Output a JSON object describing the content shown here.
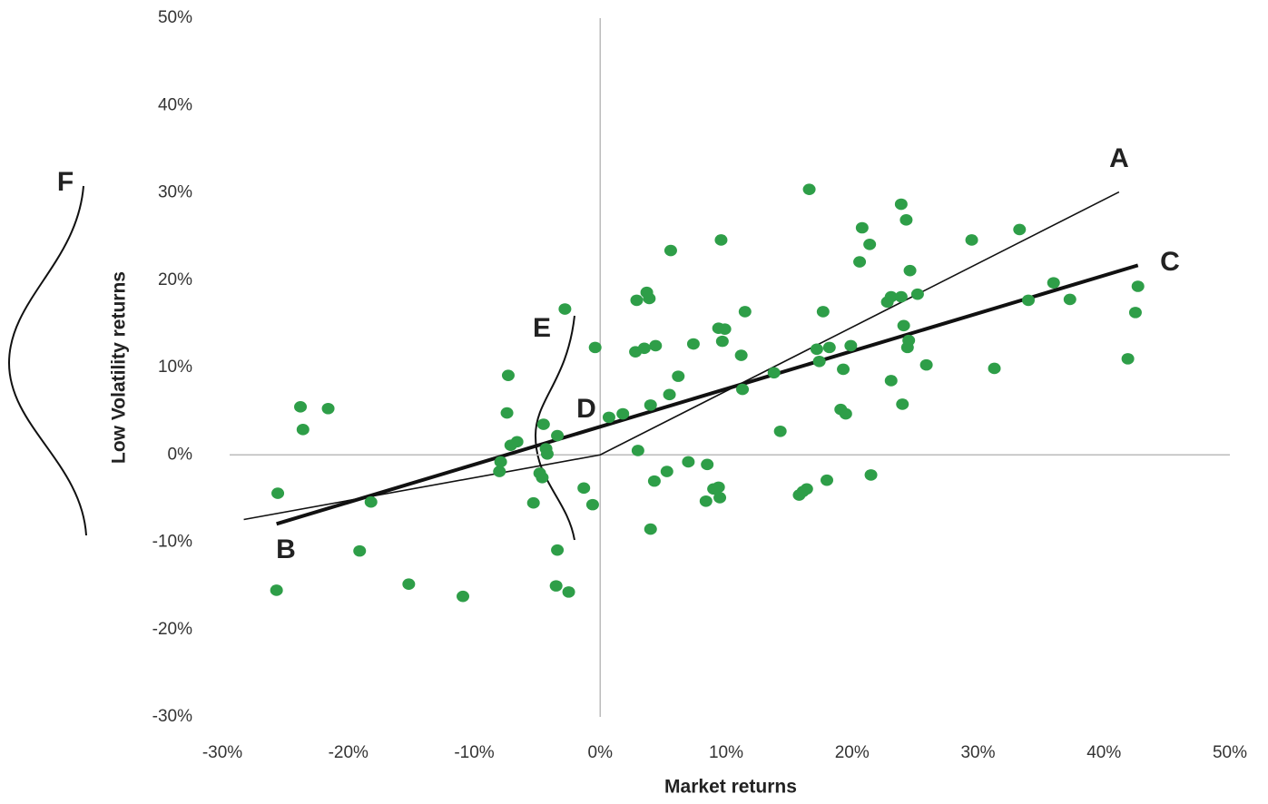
{
  "chart_data": {
    "type": "scatter",
    "x_label": "Market returns",
    "y_label": "Low Volatility returns",
    "xlim": [
      -30,
      50
    ],
    "ylim": [
      -30,
      50
    ],
    "xticks": [
      {
        "value": -30,
        "label": "-30%"
      },
      {
        "value": -20,
        "label": "-20%"
      },
      {
        "value": -10,
        "label": "-10%"
      },
      {
        "value": 0,
        "label": "0%"
      },
      {
        "value": 10,
        "label": "10%"
      },
      {
        "value": 20,
        "label": "20%"
      },
      {
        "value": 30,
        "label": "30%"
      },
      {
        "value": 40,
        "label": "40%"
      },
      {
        "value": 50,
        "label": "50%"
      }
    ],
    "yticks": [
      {
        "value": -30,
        "label": "-30%"
      },
      {
        "value": -20,
        "label": "-20%"
      },
      {
        "value": -10,
        "label": "-10%"
      },
      {
        "value": 0,
        "label": "0%"
      },
      {
        "value": 10,
        "label": "10%"
      },
      {
        "value": 20,
        "label": "20%"
      },
      {
        "value": 30,
        "label": "30%"
      },
      {
        "value": 40,
        "label": "40%"
      },
      {
        "value": 50,
        "label": "50%"
      }
    ],
    "color": "#2e9e48",
    "x": [
      -25.6,
      -25.7,
      -23.8,
      -23.6,
      -21.6,
      -18.2,
      -19.1,
      -15.2,
      -10.9,
      -7.3,
      -7.4,
      -7.9,
      -8.0,
      -7.1,
      -6.6,
      -5.3,
      -4.5,
      -4.3,
      -4.2,
      -4.8,
      -4.6,
      -3.4,
      -3.4,
      -3.5,
      -2.5,
      -2.8,
      -0.4,
      -1.3,
      -0.6,
      0.7,
      1.8,
      3.0,
      2.8,
      3.5,
      4.4,
      2.9,
      3.7,
      3.9,
      4.0,
      4.3,
      4.0,
      5.3,
      5.5,
      5.6,
      6.2,
      7.4,
      7.0,
      8.5,
      8.4,
      9.4,
      9.5,
      9.0,
      9.6,
      9.4,
      9.9,
      9.7,
      11.2,
      11.5,
      11.3,
      13.8,
      14.3,
      16.6,
      15.8,
      16.1,
      16.4,
      17.2,
      17.4,
      17.7,
      18.2,
      18.0,
      19.1,
      19.5,
      19.3,
      19.9,
      20.6,
      20.8,
      21.4,
      21.5,
      22.8,
      23.1,
      23.1,
      23.9,
      23.9,
      24.3,
      24.1,
      24.0,
      24.4,
      24.5,
      24.6,
      25.2,
      25.9,
      29.5,
      31.3,
      33.3,
      34.0,
      36.0,
      37.3,
      41.9,
      42.5,
      42.7
    ],
    "y": [
      -4.4,
      -15.5,
      5.5,
      2.9,
      5.3,
      -5.4,
      -11.0,
      -14.8,
      -16.2,
      9.1,
      4.8,
      -0.8,
      -1.9,
      1.1,
      1.5,
      -5.5,
      3.5,
      0.7,
      0.1,
      -2.1,
      -2.6,
      2.2,
      -10.9,
      -15.0,
      -15.7,
      16.7,
      12.3,
      -3.8,
      -5.7,
      4.3,
      4.7,
      0.5,
      11.8,
      12.2,
      12.5,
      17.7,
      18.6,
      17.9,
      5.7,
      -3.0,
      -8.5,
      -1.9,
      6.9,
      23.4,
      9.0,
      12.7,
      -0.8,
      -1.1,
      -5.3,
      -3.7,
      -4.9,
      -3.9,
      24.6,
      14.5,
      14.4,
      13.0,
      11.4,
      16.4,
      7.5,
      9.4,
      2.7,
      30.4,
      -4.6,
      -4.2,
      -3.9,
      12.1,
      10.7,
      16.4,
      12.3,
      -2.9,
      5.2,
      4.7,
      9.8,
      12.5,
      22.1,
      26.0,
      24.1,
      -2.3,
      17.5,
      8.5,
      18.1,
      18.1,
      28.7,
      26.9,
      14.8,
      5.8,
      12.3,
      13.1,
      21.1,
      18.4,
      10.3,
      24.6,
      9.9,
      25.8,
      17.7,
      19.7,
      17.8,
      11.0,
      16.3,
      19.3
    ],
    "lines": [
      {
        "x": [
          -28.3,
          0,
          41.2
        ],
        "y": [
          -7.4,
          0,
          30.1
        ],
        "width": 1.6
      },
      {
        "x": [
          -25.7,
          42.7
        ],
        "y": [
          -7.9,
          21.7
        ],
        "width": 4
      }
    ],
    "annotations": [
      "A",
      "B",
      "C",
      "D",
      "E",
      "F"
    ]
  }
}
